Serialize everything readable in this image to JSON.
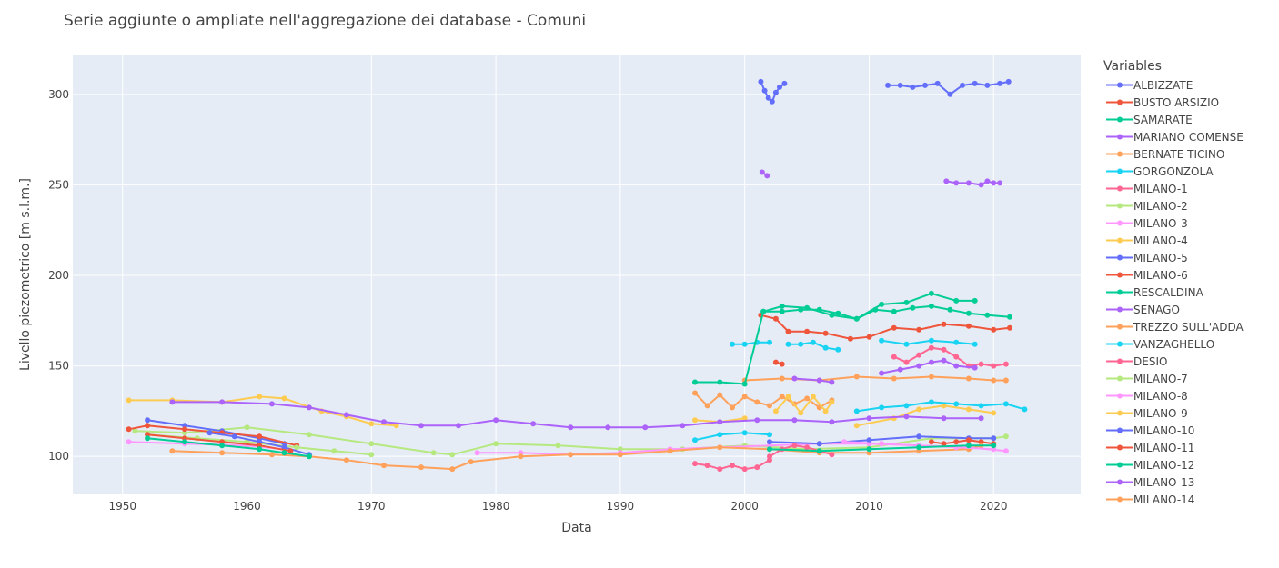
{
  "chart_data": {
    "type": "scatter",
    "title": "Serie aggiunte o ampliate nell'aggregazione dei database  - Comuni",
    "xlabel": "Data",
    "ylabel": "Livello piezometrico [m s.l.m.]",
    "xlim": [
      1946,
      2027
    ],
    "ylim": [
      79,
      322
    ],
    "xticks": [
      "1950",
      "1960",
      "1970",
      "1980",
      "1990",
      "2000",
      "2010",
      "2020"
    ],
    "yticks": [
      "100",
      "150",
      "200",
      "250",
      "300"
    ],
    "grid": true,
    "legend_title": "Variables",
    "legend_position": "right",
    "series": [
      {
        "name": "ALBIZZATE",
        "color": "#636efa",
        "segments": [
          {
            "x": [
              2001.3,
              2001.6,
              2001.9,
              2002.2,
              2002.5,
              2002.8,
              2003.2
            ],
            "y": [
              307,
              302,
              298,
              296,
              301,
              304,
              306
            ]
          },
          {
            "x": [
              2011.5,
              2012.5,
              2013.5,
              2014.5,
              2015.5,
              2016.5,
              2017.5,
              2018.5,
              2019.5,
              2020.5,
              2021.2
            ],
            "y": [
              305,
              305,
              304,
              305,
              306,
              300,
              305,
              306,
              305,
              306,
              307
            ]
          }
        ]
      },
      {
        "name": "BUSTO ARSIZIO",
        "color": "#ef553b",
        "segments": [
          {
            "x": [
              2001.3,
              2002.5,
              2003.5,
              2005.0,
              2006.5,
              2008.5,
              2010.0,
              2012.0,
              2014.0,
              2016.0,
              2018.0,
              2020.0,
              2021.3
            ],
            "y": [
              178,
              176,
              169,
              169,
              168,
              165,
              166,
              171,
              170,
              173,
              172,
              170,
              171
            ]
          }
        ]
      },
      {
        "name": "SAMARATE",
        "color": "#00cc96",
        "segments": [
          {
            "x": [
              2001.5,
              2003.0,
              2004.5,
              2006.0,
              2007.5,
              2009.0,
              2010.5,
              2012.0,
              2013.5,
              2015.0,
              2016.5,
              2018.0,
              2019.5,
              2021.3
            ],
            "y": [
              180,
              180,
              181,
              181,
              179,
              176,
              181,
              180,
              182,
              183,
              181,
              179,
              178,
              177
            ]
          }
        ]
      },
      {
        "name": "MARIANO COMENSE",
        "color": "#ab63fa",
        "segments": [
          {
            "x": [
              2001.4,
              2001.8
            ],
            "y": [
              257,
              255
            ]
          },
          {
            "x": [
              2016.2,
              2017.0,
              2018.0,
              2019.0,
              2019.5,
              2020.0,
              2020.5
            ],
            "y": [
              252,
              251,
              251,
              250,
              252,
              251,
              251
            ]
          }
        ]
      },
      {
        "name": "BERNATE TICINO",
        "color": "#ffa15a",
        "segments": [
          {
            "x": [
              1996.0,
              1997.0,
              1998.0,
              1999.0,
              2000.0,
              2001.0,
              2002.0,
              2003.0,
              2004.0,
              2005.0,
              2006.0,
              2007.0
            ],
            "y": [
              135,
              128,
              134,
              127,
              133,
              130,
              128,
              133,
              129,
              132,
              127,
              131
            ]
          },
          {
            "x": [
              2000.0,
              2003.0,
              2006.0,
              2009.0,
              2012.0,
              2015.0,
              2018.0,
              2020.0,
              2021.0
            ],
            "y": [
              142,
              143,
              142,
              144,
              143,
              144,
              143,
              142,
              142
            ]
          }
        ]
      },
      {
        "name": "GORGONZOLA",
        "color": "#19d3f3",
        "segments": [
          {
            "x": [
              1999.0,
              2000.0,
              2001.0,
              2002.0
            ],
            "y": [
              162,
              162,
              163,
              163
            ]
          },
          {
            "x": [
              2003.5,
              2004.5,
              2005.5,
              2006.5,
              2007.5
            ],
            "y": [
              162,
              162,
              163,
              160,
              159
            ]
          },
          {
            "x": [
              2011.0,
              2013.0,
              2015.0,
              2017.0,
              2018.5
            ],
            "y": [
              164,
              162,
              164,
              163,
              162
            ]
          }
        ]
      },
      {
        "name": "MILANO-1",
        "color": "#ff6692",
        "segments": [
          {
            "x": [
              1996.0,
              1997.0,
              1998.0,
              1999.0,
              2000.0,
              2001.0,
              2002.0
            ],
            "y": [
              96,
              95,
              93,
              95,
              93,
              94,
              98
            ]
          },
          {
            "x": [
              2012.0,
              2013.0,
              2014.0,
              2015.0,
              2016.0,
              2017.0,
              2018.0,
              2019.0,
              2020.0,
              2021.0
            ],
            "y": [
              155,
              152,
              156,
              160,
              159,
              155,
              150,
              151,
              150,
              151
            ]
          }
        ]
      },
      {
        "name": "MILANO-2",
        "color": "#b6e880",
        "segments": [
          {
            "x": [
              1951.0,
              1955.0,
              1960.0,
              1965.0,
              1970.0,
              1975.0,
              1976.5,
              1980.0,
              1985.0,
              1990.0,
              1995.0,
              2000.0,
              2005.0,
              2010.0,
              2015.0,
              2020.0,
              2021.0
            ],
            "y": [
              114,
              113,
              116,
              112,
              107,
              102,
              101,
              107,
              106,
              104,
              104,
              106,
              104,
              105,
              110,
              110,
              111
            ]
          }
        ]
      },
      {
        "name": "MILANO-3",
        "color": "#ff97ff",
        "segments": [
          {
            "x": [
              1950.5,
              1955.0,
              1960.0,
              1963.0
            ],
            "y": [
              108,
              107,
              106,
              104
            ]
          },
          {
            "x": [
              1978.5,
              1982.0,
              1986.0,
              1990.0,
              1994.0,
              1998.0,
              2002.0,
              2006.0,
              2010.0,
              2014.0,
              2018.0,
              2021.0
            ],
            "y": [
              102,
              102,
              101,
              102,
              104,
              105,
              106,
              107,
              107,
              106,
              105,
              103
            ]
          }
        ]
      },
      {
        "name": "MILANO-4",
        "color": "#fecb52",
        "segments": [
          {
            "x": [
              1950.5,
              1954.0,
              1958.0,
              1961.0,
              1963.0,
              1966.0,
              1968.0,
              1970.0,
              1972.0
            ],
            "y": [
              131,
              131,
              130,
              133,
              132,
              125,
              122,
              118,
              117
            ]
          },
          {
            "x": [
              2002.5,
              2003.5,
              2004.5,
              2005.5,
              2006.5,
              2007.0
            ],
            "y": [
              125,
              133,
              124,
              133,
              125,
              130
            ]
          },
          {
            "x": [
              2009.0,
              2012.0,
              2014.0,
              2016.0,
              2018.0,
              2020.0
            ],
            "y": [
              117,
              121,
              126,
              128,
              126,
              124
            ]
          }
        ]
      },
      {
        "name": "MILANO-5",
        "color": "#636efa",
        "segments": [
          {
            "x": [
              1952.0,
              1955.0,
              1958.0,
              1961.0,
              1963.0
            ],
            "y": [
              120,
              117,
              114,
              110,
              107
            ]
          },
          {
            "x": [
              2002.0,
              2006.0,
              2010.0,
              2014.0,
              2018.0,
              2020.0
            ],
            "y": [
              108,
              107,
              109,
              111,
              110,
              110
            ]
          }
        ]
      },
      {
        "name": "MILANO-6",
        "color": "#ef553b",
        "segments": [
          {
            "x": [
              1950.5,
              1952.0,
              1955.0,
              1958.0,
              1961.0,
              1964.0
            ],
            "y": [
              115,
              117,
              115,
              113,
              111,
              106
            ]
          },
          {
            "x": [
              2015.0,
              2016.0,
              2017.0,
              2018.0,
              2019.0,
              2020.0
            ],
            "y": [
              108,
              107,
              108,
              109,
              108,
              107
            ]
          }
        ]
      },
      {
        "name": "RESCALDINA",
        "color": "#00cc96",
        "segments": [
          {
            "x": [
              1996.0,
              1998.0,
              2000.0,
              2001.5,
              2003.0,
              2005.0,
              2007.0,
              2009.0,
              2011.0,
              2013.0,
              2015.0,
              2017.0,
              2018.5
            ],
            "y": [
              141,
              141,
              140,
              180,
              183,
              182,
              178,
              176,
              184,
              185,
              190,
              186,
              186
            ]
          }
        ]
      },
      {
        "name": "SENAGO",
        "color": "#ab63fa",
        "segments": [
          {
            "x": [
              2004.0,
              2006.0,
              2007.0
            ],
            "y": [
              143,
              142,
              141
            ]
          },
          {
            "x": [
              2011.0,
              2012.5,
              2014.0,
              2015.0,
              2016.0,
              2017.0,
              2018.5
            ],
            "y": [
              146,
              148,
              150,
              152,
              153,
              150,
              149
            ]
          }
        ]
      },
      {
        "name": "TREZZO SULL'ADDA",
        "color": "#ffa15a",
        "segments": [
          {
            "x": [
              1954.0,
              1958.0,
              1962.0,
              1965.0,
              1968.0,
              1971.0,
              1974.0,
              1976.5,
              1978.0,
              1982.0,
              1986.0,
              1990.0,
              1994.0,
              1998.0,
              2002.0,
              2006.0,
              2010.0,
              2014.0,
              2018.0,
              2019.0
            ],
            "y": [
              103,
              102,
              101,
              100,
              98,
              95,
              94,
              93,
              97,
              100,
              101,
              101,
              103,
              105,
              104,
              102,
              102,
              103,
              104,
              106
            ]
          }
        ]
      },
      {
        "name": "VANZAGHELLO",
        "color": "#19d3f3",
        "segments": [
          {
            "x": [
              1996.0,
              1998.0,
              2000.0,
              2002.0
            ],
            "y": [
              109,
              112,
              113,
              112
            ]
          },
          {
            "x": [
              2009.0,
              2011.0,
              2013.0,
              2015.0,
              2017.0,
              2019.0,
              2021.0,
              2022.5
            ],
            "y": [
              125,
              127,
              128,
              130,
              129,
              128,
              129,
              126
            ]
          }
        ]
      },
      {
        "name": "DESIO",
        "color": "#ff6692",
        "segments": [
          {
            "x": [
              2002.0,
              2003.0,
              2004.0,
              2005.0,
              2006.0,
              2007.0
            ],
            "y": [
              100,
              104,
              106,
              105,
              103,
              101
            ]
          }
        ]
      },
      {
        "name": "MILANO-7",
        "color": "#b6e880",
        "segments": [
          {
            "x": [
              1952.0,
              1956.0,
              1960.0,
              1964.0,
              1967.0,
              1970.0
            ],
            "y": [
              112,
              110,
              108,
              105,
              103,
              101
            ]
          }
        ]
      },
      {
        "name": "MILANO-8",
        "color": "#ff97ff",
        "segments": [
          {
            "x": [
              2008.0,
              2011.0,
              2014.0,
              2017.0,
              2020.0
            ],
            "y": [
              108,
              107,
              106,
              105,
              104
            ]
          }
        ]
      },
      {
        "name": "MILANO-9",
        "color": "#fecb52",
        "segments": [
          {
            "x": [
              1996.0,
              1998.0,
              2000.0
            ],
            "y": [
              120,
              119,
              121
            ]
          }
        ]
      },
      {
        "name": "MILANO-10",
        "color": "#636efa",
        "segments": [
          {
            "x": [
              1957.0,
              1959.0,
              1961.0,
              1963.0,
              1965.0
            ],
            "y": [
              113,
              111,
              108,
              105,
              101
            ]
          }
        ]
      },
      {
        "name": "MILANO-11",
        "color": "#ef553b",
        "segments": [
          {
            "x": [
              1952.0,
              1955.0,
              1958.0,
              1961.0,
              1963.5
            ],
            "y": [
              112,
              110,
              108,
              106,
              103
            ]
          },
          {
            "x": [
              2002.5,
              2003.0
            ],
            "y": [
              152,
              151
            ]
          }
        ]
      },
      {
        "name": "MILANO-12",
        "color": "#00cc96",
        "segments": [
          {
            "x": [
              1952.0,
              1955.0,
              1958.0,
              1961.0,
              1963.0,
              1965.0
            ],
            "y": [
              110,
              108,
              106,
              104,
              102,
              100
            ]
          },
          {
            "x": [
              2002.0,
              2006.0,
              2010.0,
              2014.0,
              2018.0,
              2020.0
            ],
            "y": [
              104,
              103,
              104,
              105,
              106,
              106
            ]
          }
        ]
      },
      {
        "name": "MILANO-13",
        "color": "#ab63fa",
        "segments": [
          {
            "x": [
              1954.0,
              1958.0,
              1962.0,
              1965.0,
              1968.0,
              1971.0,
              1974.0,
              1977.0,
              1980.0,
              1983.0,
              1986.0,
              1989.0,
              1992.0,
              1995.0,
              1998.0,
              2001.0,
              2004.0,
              2007.0,
              2010.0,
              2013.0,
              2016.0,
              2019.0
            ],
            "y": [
              130,
              130,
              129,
              127,
              123,
              119,
              117,
              117,
              120,
              118,
              116,
              116,
              116,
              117,
              119,
              120,
              120,
              119,
              121,
              122,
              121,
              121
            ]
          }
        ]
      },
      {
        "name": "MILANO-14",
        "color": "#ffa15a",
        "segments": []
      }
    ]
  }
}
